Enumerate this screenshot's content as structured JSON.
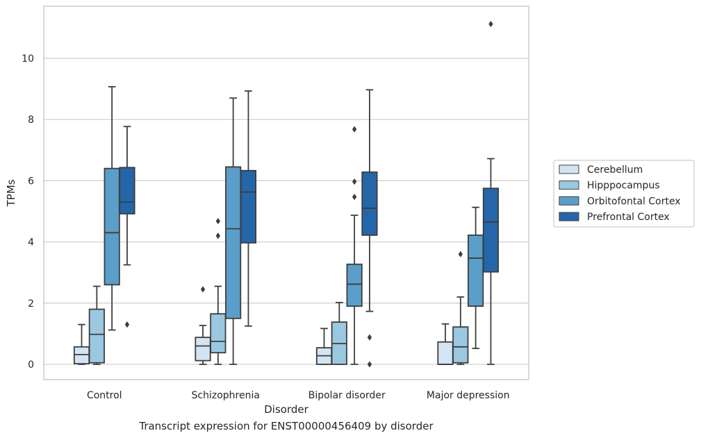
{
  "caption": "Transcript expression for ENST00000456409 by disorder",
  "chart_data": {
    "type": "boxplot",
    "xlabel": "Disorder",
    "ylabel": "TPMs",
    "ylim": [
      -0.5,
      11.7
    ],
    "yticks": [
      0,
      2,
      4,
      6,
      8,
      10
    ],
    "grid": "horizontal",
    "legend_position": "right",
    "categories": [
      "Control",
      "Schizophrenia",
      "Bipolar disorder",
      "Major depression"
    ],
    "series": [
      {
        "name": "Cerebellum",
        "color": "#d3e4f3",
        "boxes": [
          {
            "whisker_low": 0.0,
            "q1": 0.02,
            "median": 0.32,
            "q3": 0.57,
            "whisker_high": 1.3,
            "outliers": []
          },
          {
            "whisker_low": 0.0,
            "q1": 0.12,
            "median": 0.6,
            "q3": 0.88,
            "whisker_high": 1.27,
            "outliers": [
              2.45
            ]
          },
          {
            "whisker_low": 0.0,
            "q1": 0.0,
            "median": 0.28,
            "q3": 0.54,
            "whisker_high": 1.17,
            "outliers": []
          },
          {
            "whisker_low": 0.0,
            "q1": 0.0,
            "median": 0.0,
            "q3": 0.73,
            "whisker_high": 1.32,
            "outliers": []
          }
        ]
      },
      {
        "name": "Hipppocampus",
        "color": "#9ac8e0",
        "boxes": [
          {
            "whisker_low": 0.0,
            "q1": 0.05,
            "median": 0.98,
            "q3": 1.8,
            "whisker_high": 2.55,
            "outliers": []
          },
          {
            "whisker_low": 0.0,
            "q1": 0.38,
            "median": 0.75,
            "q3": 1.65,
            "whisker_high": 2.55,
            "outliers": [
              4.2,
              4.68
            ]
          },
          {
            "whisker_low": 0.0,
            "q1": 0.0,
            "median": 0.68,
            "q3": 1.38,
            "whisker_high": 2.02,
            "outliers": []
          },
          {
            "whisker_low": 0.0,
            "q1": 0.05,
            "median": 0.57,
            "q3": 1.22,
            "whisker_high": 2.2,
            "outliers": [
              3.6
            ]
          }
        ]
      },
      {
        "name": "Orbitofontal Cortex",
        "color": "#5a9ec9",
        "boxes": [
          {
            "whisker_low": 1.12,
            "q1": 2.6,
            "median": 4.3,
            "q3": 6.4,
            "whisker_high": 9.07,
            "outliers": []
          },
          {
            "whisker_low": 0.0,
            "q1": 1.5,
            "median": 4.43,
            "q3": 6.45,
            "whisker_high": 8.7,
            "outliers": []
          },
          {
            "whisker_low": 0.0,
            "q1": 1.9,
            "median": 2.62,
            "q3": 3.27,
            "whisker_high": 4.87,
            "outliers": [
              5.47,
              5.97,
              7.68
            ]
          },
          {
            "whisker_low": 0.52,
            "q1": 1.9,
            "median": 3.47,
            "q3": 4.22,
            "whisker_high": 5.13,
            "outliers": []
          }
        ]
      },
      {
        "name": "Prefrontal Cortex",
        "color": "#2565a9",
        "boxes": [
          {
            "whisker_low": 3.25,
            "q1": 4.92,
            "median": 5.3,
            "q3": 6.43,
            "whisker_high": 7.77,
            "outliers": [
              1.3
            ]
          },
          {
            "whisker_low": 1.25,
            "q1": 3.97,
            "median": 5.63,
            "q3": 6.33,
            "whisker_high": 8.93,
            "outliers": []
          },
          {
            "whisker_low": 1.73,
            "q1": 4.22,
            "median": 5.1,
            "q3": 6.28,
            "whisker_high": 8.97,
            "outliers": [
              0.0,
              0.88
            ]
          },
          {
            "whisker_low": 0.0,
            "q1": 3.02,
            "median": 4.65,
            "q3": 5.75,
            "whisker_high": 6.72,
            "outliers": [
              11.12
            ]
          }
        ]
      }
    ],
    "colors": {
      "grid": "#cccccc",
      "frame": "#cccccc",
      "box_edge": "#3d3d3d"
    }
  }
}
